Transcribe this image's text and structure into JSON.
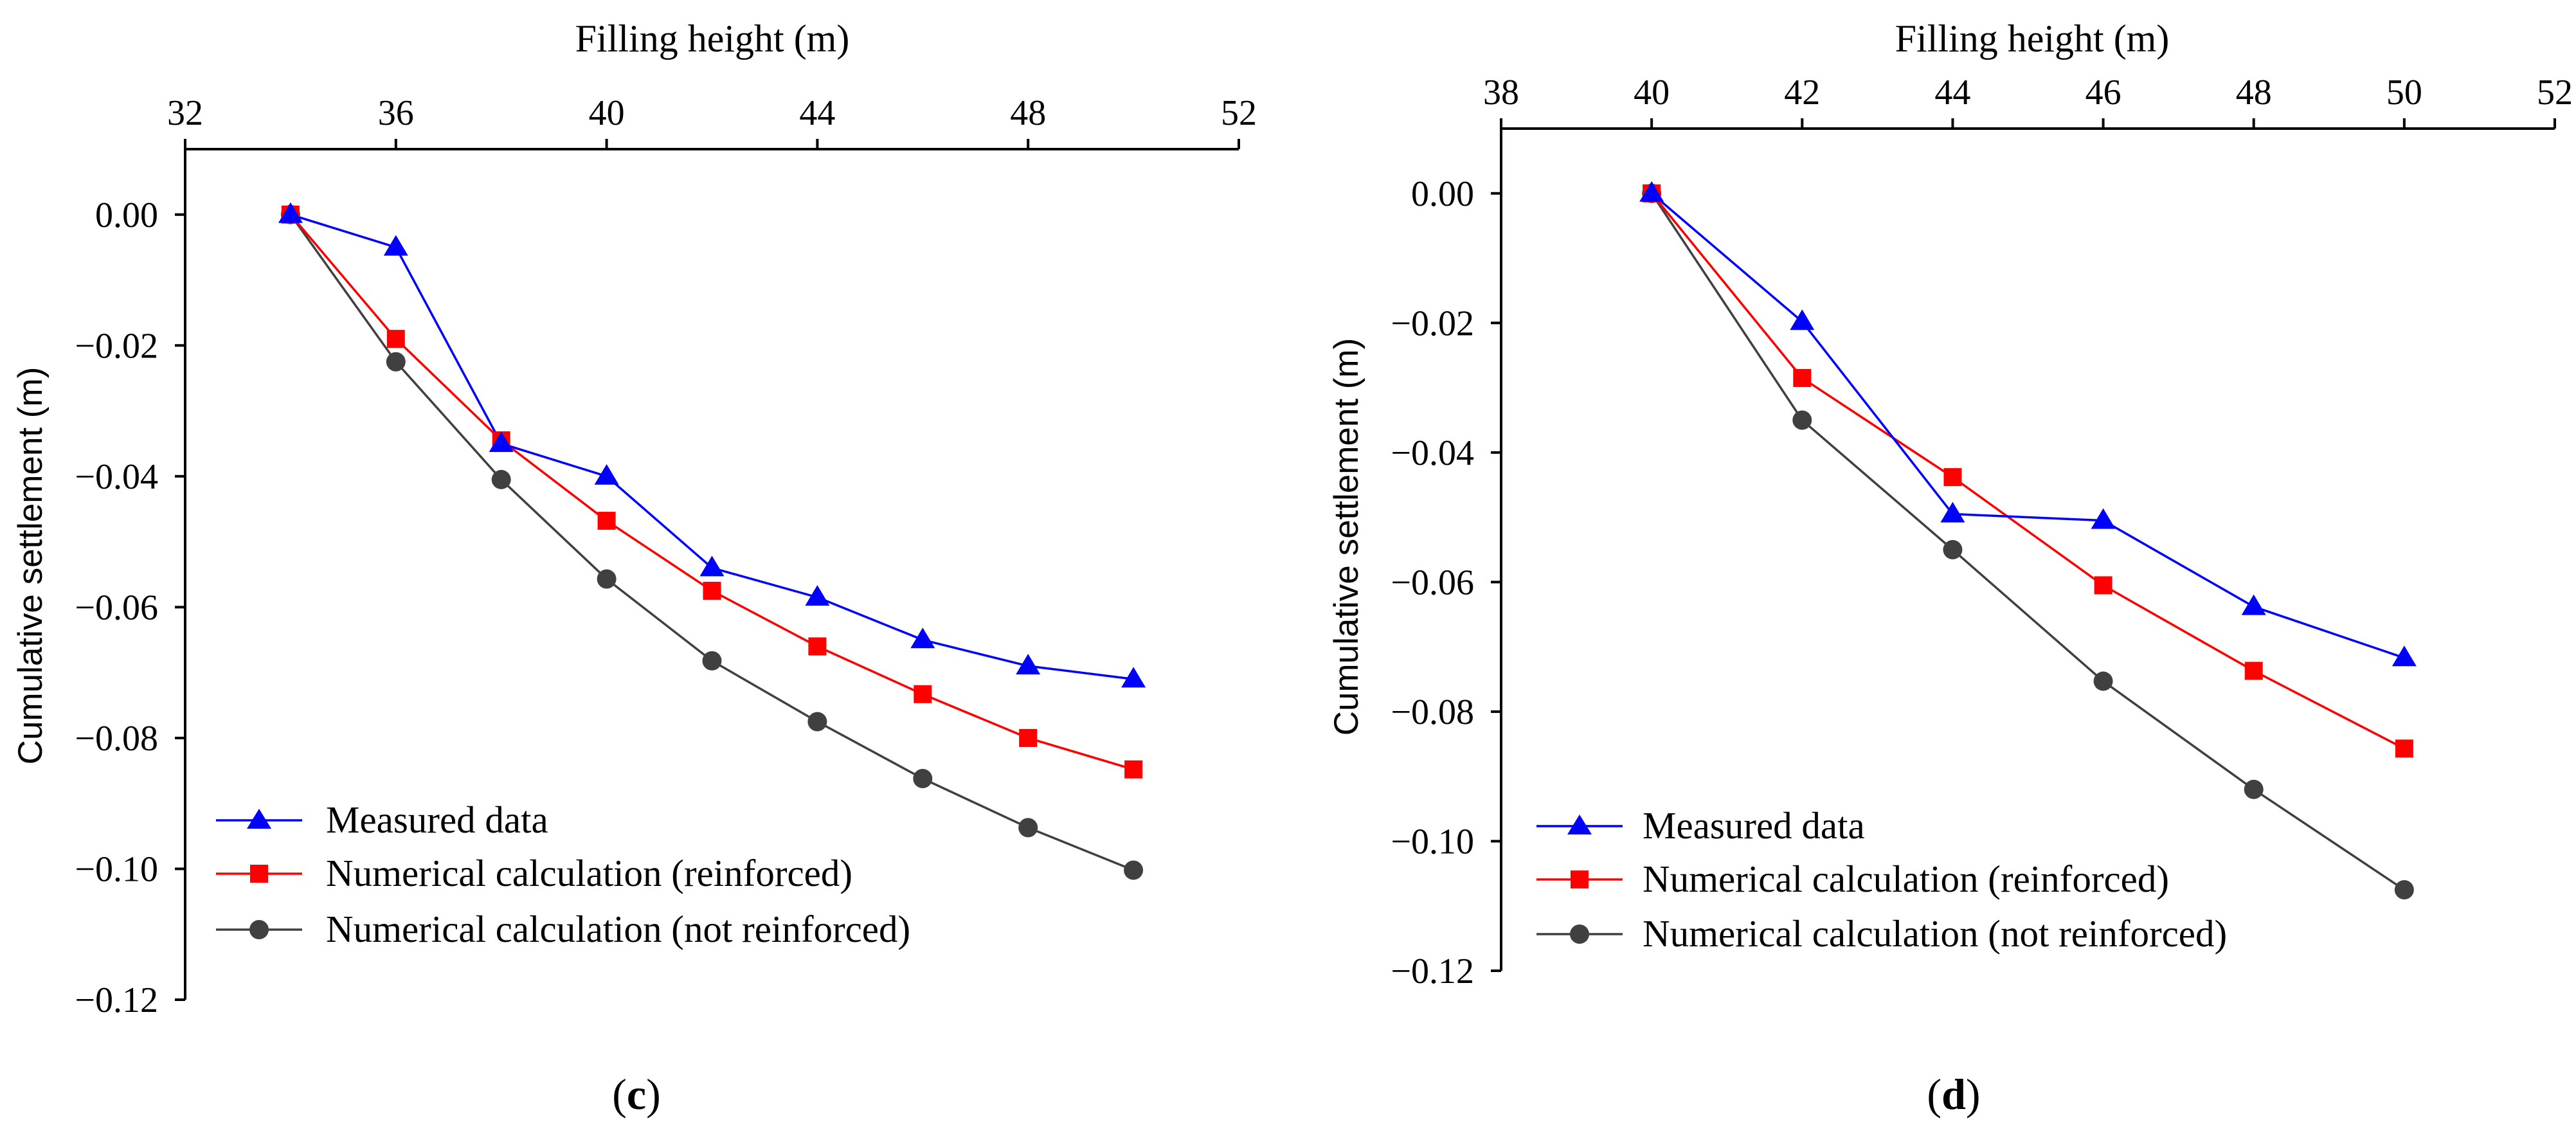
{
  "chart_data": [
    {
      "type": "line",
      "panel_label": "c",
      "xlabel": "Filling height (m)",
      "ylabel": "Cumulative settlement (m)",
      "xlim": [
        32,
        52
      ],
      "ylim": [
        -0.12,
        0.01
      ],
      "xticks": [
        "32",
        "36",
        "40",
        "44",
        "48",
        "52"
      ],
      "yticks": [
        "0.00",
        "−0.02",
        "−0.04",
        "−0.06",
        "−0.08",
        "−0.10",
        "−0.12"
      ],
      "x_axis_position": "top",
      "legend_position": "bottom-left",
      "series": [
        {
          "name": "Measured data",
          "color": "#0000ff",
          "marker": "triangle",
          "x": [
            34,
            36,
            38,
            40,
            42,
            44,
            46,
            48,
            50
          ],
          "values": [
            0.0,
            -0.005,
            -0.035,
            -0.04,
            -0.054,
            -0.0585,
            -0.065,
            -0.069,
            -0.071
          ]
        },
        {
          "name": "Numerical calculation (reinforced)",
          "color": "#ff0000",
          "marker": "square",
          "x": [
            34,
            36,
            38,
            40,
            42,
            44,
            46,
            48,
            50
          ],
          "values": [
            0.0,
            -0.019,
            -0.0345,
            -0.0468,
            -0.0575,
            -0.066,
            -0.0733,
            -0.08,
            -0.0848
          ]
        },
        {
          "name": "Numerical calculation (not reinforced)",
          "color": "#404040",
          "marker": "circle",
          "x": [
            34,
            36,
            38,
            40,
            42,
            44,
            46,
            48,
            50
          ],
          "values": [
            0.0,
            -0.0225,
            -0.0405,
            -0.0557,
            -0.0682,
            -0.0775,
            -0.0862,
            -0.0937,
            -0.1002
          ]
        }
      ]
    },
    {
      "type": "line",
      "panel_label": "d",
      "xlabel": "Filling height (m)",
      "ylabel": "Cumulative settlement (m)",
      "xlim": [
        38,
        52
      ],
      "ylim": [
        -0.12,
        0.01
      ],
      "xticks": [
        "38",
        "40",
        "42",
        "44",
        "46",
        "48",
        "50",
        "52"
      ],
      "yticks": [
        "0.00",
        "−0.02",
        "−0.04",
        "−0.06",
        "−0.08",
        "−0.10",
        "−0.12"
      ],
      "x_axis_position": "top",
      "legend_position": "bottom-left",
      "series": [
        {
          "name": "Measured data",
          "color": "#0000ff",
          "marker": "triangle",
          "x": [
            40,
            42,
            44,
            46,
            48,
            50
          ],
          "values": [
            0.0,
            -0.0198,
            -0.0495,
            -0.0505,
            -0.0638,
            -0.0717
          ]
        },
        {
          "name": "Numerical calculation (reinforced)",
          "color": "#ff0000",
          "marker": "square",
          "x": [
            40,
            42,
            44,
            46,
            48,
            50
          ],
          "values": [
            0.0,
            -0.0285,
            -0.0438,
            -0.0605,
            -0.0737,
            -0.0857
          ]
        },
        {
          "name": "Numerical calculation (not reinforced)",
          "color": "#404040",
          "marker": "circle",
          "x": [
            40,
            42,
            44,
            46,
            48,
            50
          ],
          "values": [
            0.0,
            -0.035,
            -0.055,
            -0.0753,
            -0.092,
            -0.1075
          ]
        }
      ]
    }
  ]
}
